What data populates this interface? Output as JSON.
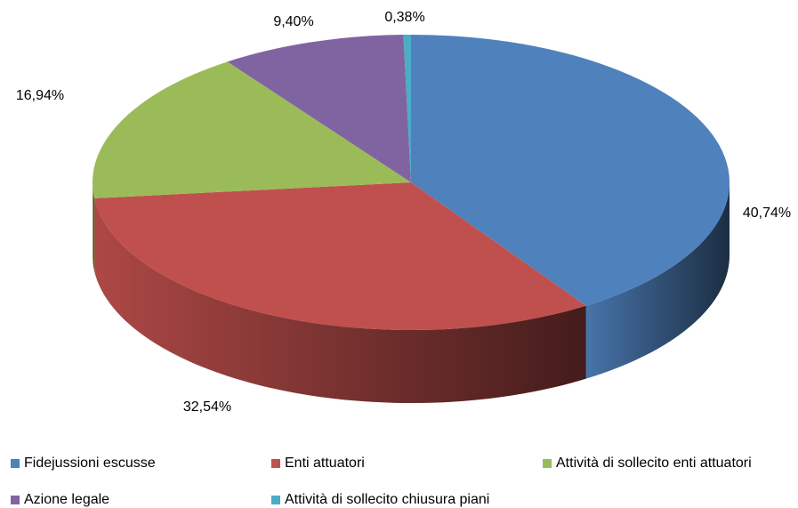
{
  "chart_data": {
    "type": "pie",
    "categories": [
      "Fidejussioni escusse",
      "Enti attuatori",
      "Attività di sollecito enti attuatori",
      "Azione legale",
      "Attività di sollecito chiusura piani"
    ],
    "values": [
      40.74,
      32.54,
      16.94,
      9.4,
      0.38
    ],
    "value_labels": [
      "40,74%",
      "32,54%",
      "16,94%",
      "9,40%",
      "0,38%"
    ],
    "colors": [
      "#4f81bd",
      "#c0504d",
      "#9bbb59",
      "#8064a2",
      "#4bacc6"
    ],
    "legend": "bottom"
  }
}
